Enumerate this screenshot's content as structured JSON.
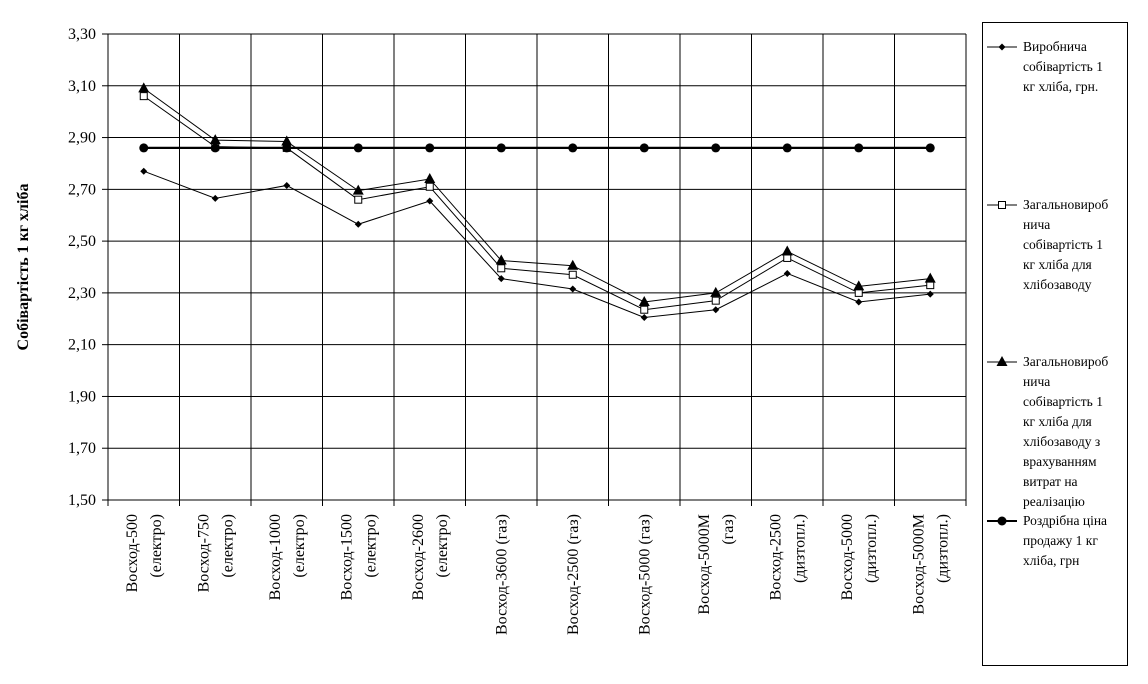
{
  "chart_data": {
    "type": "line",
    "title": "",
    "ylabel": "Собівартість 1 кг хліба",
    "xlabel": "",
    "ylim": [
      1.5,
      3.3
    ],
    "ytick_step": 0.2,
    "yticks": [
      "1,50",
      "1,70",
      "1,90",
      "2,10",
      "2,30",
      "2,50",
      "2,70",
      "2,90",
      "3,10",
      "3,30"
    ],
    "grid": true,
    "legend_position": "right",
    "categories": [
      [
        "Восход-500",
        "(електро)"
      ],
      [
        "Восход-750",
        "(електро)"
      ],
      [
        "Восход-1000",
        "(електро)"
      ],
      [
        "Восход-1500",
        "(електро)"
      ],
      [
        "Восход-2600",
        "(електро)"
      ],
      [
        "Восход-3600 (газ)"
      ],
      [
        "Восход-2500 (газ)"
      ],
      [
        "Восход-5000 (газ)"
      ],
      [
        "Восход-5000М",
        "(газ)"
      ],
      [
        "Восход-2500",
        "(дизтопл.)"
      ],
      [
        "Восход-5000",
        "(дизтопл.)"
      ],
      [
        "Восход-5000М",
        "(дизтопл.)"
      ]
    ],
    "series": [
      {
        "name": "Виробнича собівартість 1 кг хліба, грн.",
        "marker": "diamond",
        "values": [
          2.77,
          2.665,
          2.715,
          2.565,
          2.655,
          2.355,
          2.315,
          2.205,
          2.235,
          2.375,
          2.265,
          2.295
        ]
      },
      {
        "name": "Загальновиробнича собівартість 1 кг хліба для хлібозаводу",
        "marker": "square",
        "values": [
          3.06,
          2.865,
          2.86,
          2.66,
          2.71,
          2.395,
          2.37,
          2.235,
          2.27,
          2.435,
          2.3,
          2.33
        ]
      },
      {
        "name": "Загальновиробнича собівартість 1 кг хліба для хлібозаводу з врахуванням витрат на реалізацію",
        "marker": "triangle",
        "values": [
          3.09,
          2.89,
          2.885,
          2.695,
          2.74,
          2.425,
          2.405,
          2.265,
          2.3,
          2.46,
          2.325,
          2.355
        ]
      },
      {
        "name": "Роздрібна ціна продажу 1 кг хліба, грн",
        "marker": "circle",
        "values": [
          2.86,
          2.86,
          2.86,
          2.86,
          2.86,
          2.86,
          2.86,
          2.86,
          2.86,
          2.86,
          2.86,
          2.86
        ]
      }
    ]
  },
  "legend": {
    "items": [
      [
        "Виробнича",
        "собівартість 1",
        "кг хліба, грн."
      ],
      [
        "Загальновироб",
        "нича",
        "собівартість 1",
        "кг хліба для",
        "хлібозаводу"
      ],
      [
        "Загальновироб",
        "нича",
        "собівартість 1",
        "кг хліба для",
        "хлібозаводу з",
        "врахуванням",
        "витрат на",
        "реалізацію"
      ],
      [
        "Роздрібна ціна",
        "продажу 1 кг",
        "хліба, грн"
      ]
    ]
  }
}
